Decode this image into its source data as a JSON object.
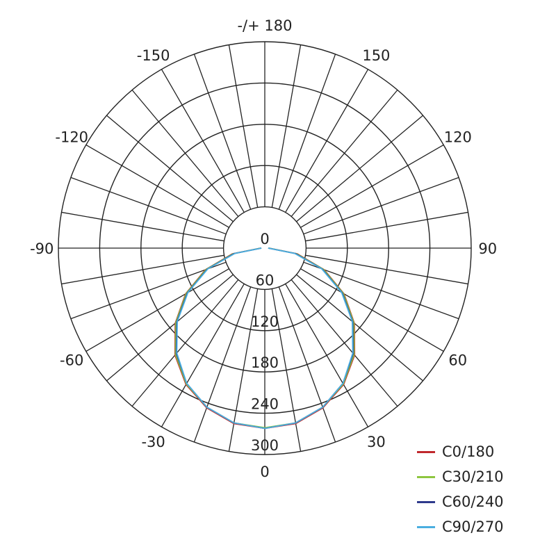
{
  "chart_data": {
    "type": "polar",
    "angle_labels": [
      {
        "angle": 180,
        "text": "-/+ 180"
      },
      {
        "angle": 150,
        "text": "150"
      },
      {
        "angle": -150,
        "text": "-150"
      },
      {
        "angle": 120,
        "text": "120"
      },
      {
        "angle": -120,
        "text": "-120"
      },
      {
        "angle": 90,
        "text": "90"
      },
      {
        "angle": -90,
        "text": "-90"
      },
      {
        "angle": 60,
        "text": "60"
      },
      {
        "angle": -60,
        "text": "-60"
      },
      {
        "angle": 30,
        "text": "30"
      },
      {
        "angle": -30,
        "text": "-30"
      },
      {
        "angle": 0,
        "text": "0"
      }
    ],
    "radial_ticks": [
      "0",
      "60",
      "120",
      "180",
      "240",
      "300"
    ],
    "radial_range": [
      0,
      300
    ],
    "angle_step_grid": 10,
    "grid": true,
    "legend_position": "bottom-right",
    "angles": [
      -90,
      -80,
      -70,
      -60,
      -50,
      -40,
      -30,
      -20,
      -10,
      0,
      10,
      20,
      30,
      40,
      50,
      60,
      70,
      80,
      90
    ],
    "series": [
      {
        "name": "C0/180",
        "color": "#c0282d",
        "values": [
          6,
          48,
          92,
          133,
          170,
          203,
          229,
          247,
          259,
          262,
          259,
          247,
          229,
          203,
          170,
          133,
          92,
          48,
          6
        ]
      },
      {
        "name": "C30/210",
        "color": "#8dc63f",
        "values": [
          6,
          47,
          91,
          132,
          169,
          202,
          228,
          246,
          258,
          261,
          258,
          246,
          228,
          202,
          169,
          132,
          91,
          47,
          6
        ]
      },
      {
        "name": "C60/240",
        "color": "#2e3a8c",
        "values": [
          5,
          45,
          89,
          130,
          167,
          200,
          227,
          246,
          258,
          262,
          258,
          246,
          227,
          200,
          167,
          130,
          89,
          45,
          5
        ]
      },
      {
        "name": "C90/270",
        "color": "#4aaee0",
        "values": [
          5,
          44,
          88,
          129,
          166,
          199,
          227,
          246,
          258,
          262,
          258,
          246,
          227,
          199,
          166,
          129,
          88,
          44,
          5
        ]
      }
    ]
  }
}
